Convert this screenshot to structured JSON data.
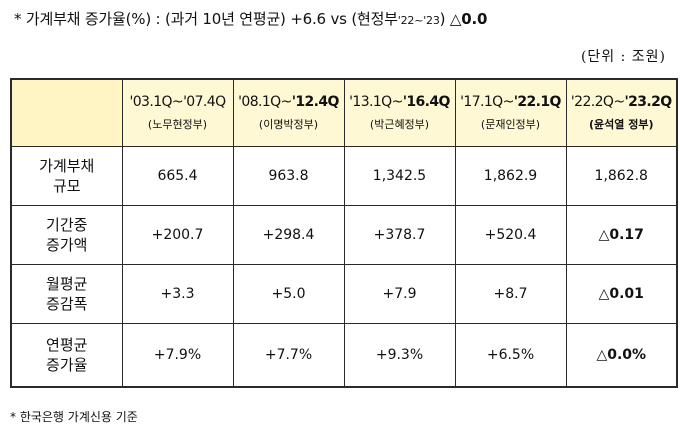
{
  "headline": {
    "prefix": "* 가계부채 증가율(%) : (과거 10년 연평균) +6.6 vs (현정부",
    "period": "'22~'23",
    "closing": ")",
    "value": "△0.0"
  },
  "unit_note": "(단위 : 조원)",
  "table": {
    "columns": [
      {
        "start": "'03.1Q~",
        "end": "'07.4Q",
        "end_bold": false,
        "admin": "(노무현정부)",
        "admin_bold": false
      },
      {
        "start": "'08.1Q~",
        "end": "'12.4Q",
        "end_bold": true,
        "admin": "(이명박정부)",
        "admin_bold": false
      },
      {
        "start": "'13.1Q~",
        "end": "'16.4Q",
        "end_bold": true,
        "admin": "(박근혜정부)",
        "admin_bold": false
      },
      {
        "start": "'17.1Q~",
        "end": "'22.1Q",
        "end_bold": true,
        "admin": "(문재인정부)",
        "admin_bold": false
      },
      {
        "start": "'22.2Q~",
        "end": "'23.2Q",
        "end_bold": true,
        "admin": "(윤석열 정부)",
        "admin_bold": true
      }
    ],
    "rows": [
      {
        "label_line1": "가계부채",
        "label_line2": "규모",
        "values": [
          "665.4",
          "963.8",
          "1,342.5",
          "1,862.9",
          "1,862.8"
        ]
      },
      {
        "label_line1": "기간중",
        "label_line2": "증가액",
        "values": [
          "+200.7",
          "+298.4",
          "+378.7",
          "+520.4",
          "△0.17"
        ]
      },
      {
        "label_line1": "월평균",
        "label_line2": "증감폭",
        "values": [
          "+3.3",
          "+5.0",
          "+7.9",
          "+8.7",
          "△0.01"
        ]
      },
      {
        "label_line1": "연평균",
        "label_line2": "증가율",
        "values": [
          "+7.9%",
          "+7.7%",
          "+9.3%",
          "+6.5%",
          "△0.0%"
        ]
      }
    ]
  },
  "footnote": "* 한국은행 가계신용 기준"
}
